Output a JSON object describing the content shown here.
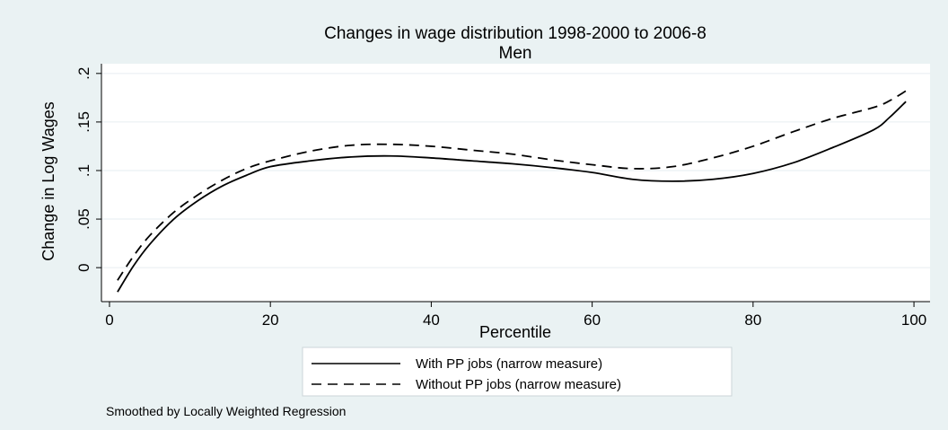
{
  "chart_data": {
    "type": "line",
    "title": "Changes in wage distribution 1998-2000 to 2006-8",
    "subtitle": "Men",
    "xlabel": "Percentile",
    "ylabel": "Change in Log Wages",
    "xlim": [
      -1,
      102
    ],
    "ylim": [
      -0.035,
      0.21
    ],
    "xticks": [
      0,
      20,
      40,
      60,
      80,
      100
    ],
    "xtick_labels": [
      "0",
      "20",
      "40",
      "60",
      "80",
      "100"
    ],
    "yticks": [
      0,
      0.05,
      0.1,
      0.15,
      0.2
    ],
    "ytick_labels": [
      "0",
      ".05",
      ".1",
      ".15",
      ".2"
    ],
    "grid": true,
    "legend_position": "bottom",
    "note": "Smoothed by Locally Weighted Regression",
    "series": [
      {
        "name": "With PP jobs (narrow measure)",
        "style": "solid",
        "color": "#000000",
        "x": [
          1,
          3,
          5,
          8,
          11,
          14,
          17,
          20,
          25,
          30,
          35,
          40,
          45,
          50,
          55,
          60,
          65,
          70,
          75,
          80,
          85,
          90,
          95,
          97,
          99
        ],
        "y": [
          -0.025,
          0.002,
          0.024,
          0.05,
          0.069,
          0.084,
          0.095,
          0.104,
          0.11,
          0.114,
          0.115,
          0.113,
          0.11,
          0.107,
          0.103,
          0.098,
          0.091,
          0.089,
          0.091,
          0.097,
          0.108,
          0.124,
          0.142,
          0.155,
          0.171
        ]
      },
      {
        "name": "Without PP jobs (narrow measure)",
        "style": "dashed",
        "color": "#000000",
        "x": [
          1,
          3,
          5,
          8,
          11,
          14,
          17,
          20,
          25,
          30,
          35,
          40,
          45,
          50,
          55,
          60,
          65,
          70,
          75,
          80,
          85,
          90,
          95,
          97,
          99
        ],
        "y": [
          -0.013,
          0.012,
          0.033,
          0.057,
          0.075,
          0.09,
          0.102,
          0.11,
          0.12,
          0.126,
          0.127,
          0.125,
          0.121,
          0.117,
          0.111,
          0.106,
          0.102,
          0.104,
          0.113,
          0.125,
          0.14,
          0.154,
          0.165,
          0.172,
          0.182
        ]
      }
    ]
  },
  "colors": {
    "outer_background": "#eaf2f3",
    "plot_background": "#ffffff",
    "legend_background": "#ffffff",
    "grid": "#e6eef0",
    "line": "#000000"
  }
}
